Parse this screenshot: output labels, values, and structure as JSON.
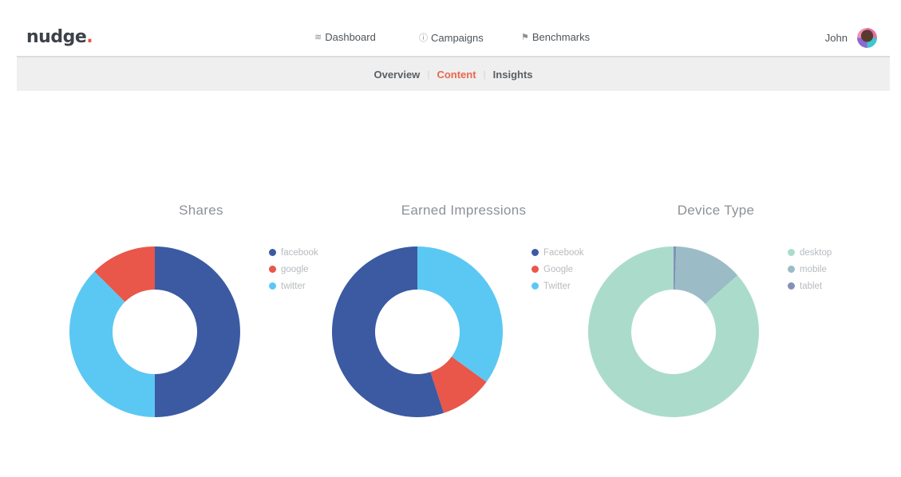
{
  "header": {
    "logo_text": "nudge",
    "logo_dot": ".",
    "nav": [
      {
        "label": "Dashboard",
        "icon": "layers-icon",
        "glyph": "≋"
      },
      {
        "label": "Campaigns",
        "icon": "info-circle-icon",
        "glyph": "ⓘ"
      },
      {
        "label": "Benchmarks",
        "icon": "flag-icon",
        "glyph": "⚑"
      }
    ],
    "user": {
      "name": "John"
    }
  },
  "subnav": {
    "items": [
      {
        "label": "Overview",
        "active": false
      },
      {
        "label": "Content",
        "active": true
      },
      {
        "label": "Insights",
        "active": false
      }
    ],
    "separator": "|"
  },
  "colors": {
    "accent": "#e8674f",
    "facebook": "#3b5aa2",
    "google": "#e8574a",
    "twitter": "#5bc8f3",
    "desktop": "#abdccb",
    "mobile": "#9bbcc6",
    "tablet": "#8391b8"
  },
  "chart_data": [
    {
      "type": "pie",
      "title": "Shares",
      "donut": true,
      "legend_position": "right",
      "categories": [
        "facebook",
        "google",
        "twitter"
      ],
      "values": [
        50,
        12.5,
        37.5
      ],
      "colors": [
        "#3b5aa2",
        "#e8574a",
        "#5bc8f3"
      ],
      "draw_order": [
        "facebook",
        "twitter",
        "google"
      ]
    },
    {
      "type": "pie",
      "title": "Earned Impressions",
      "donut": true,
      "legend_position": "right",
      "categories": [
        "Facebook",
        "Google",
        "Twitter"
      ],
      "values": [
        55,
        10,
        35
      ],
      "colors": [
        "#3b5aa2",
        "#e8574a",
        "#5bc8f3"
      ],
      "draw_order": [
        "Twitter",
        "Google",
        "Facebook"
      ]
    },
    {
      "type": "pie",
      "title": "Device Type",
      "donut": true,
      "legend_position": "right",
      "categories": [
        "desktop",
        "mobile",
        "tablet"
      ],
      "values": [
        86.5,
        13,
        0.5
      ],
      "colors": [
        "#abdccb",
        "#9bbcc6",
        "#8391b8"
      ],
      "draw_order": [
        "tablet",
        "mobile",
        "desktop"
      ]
    }
  ]
}
